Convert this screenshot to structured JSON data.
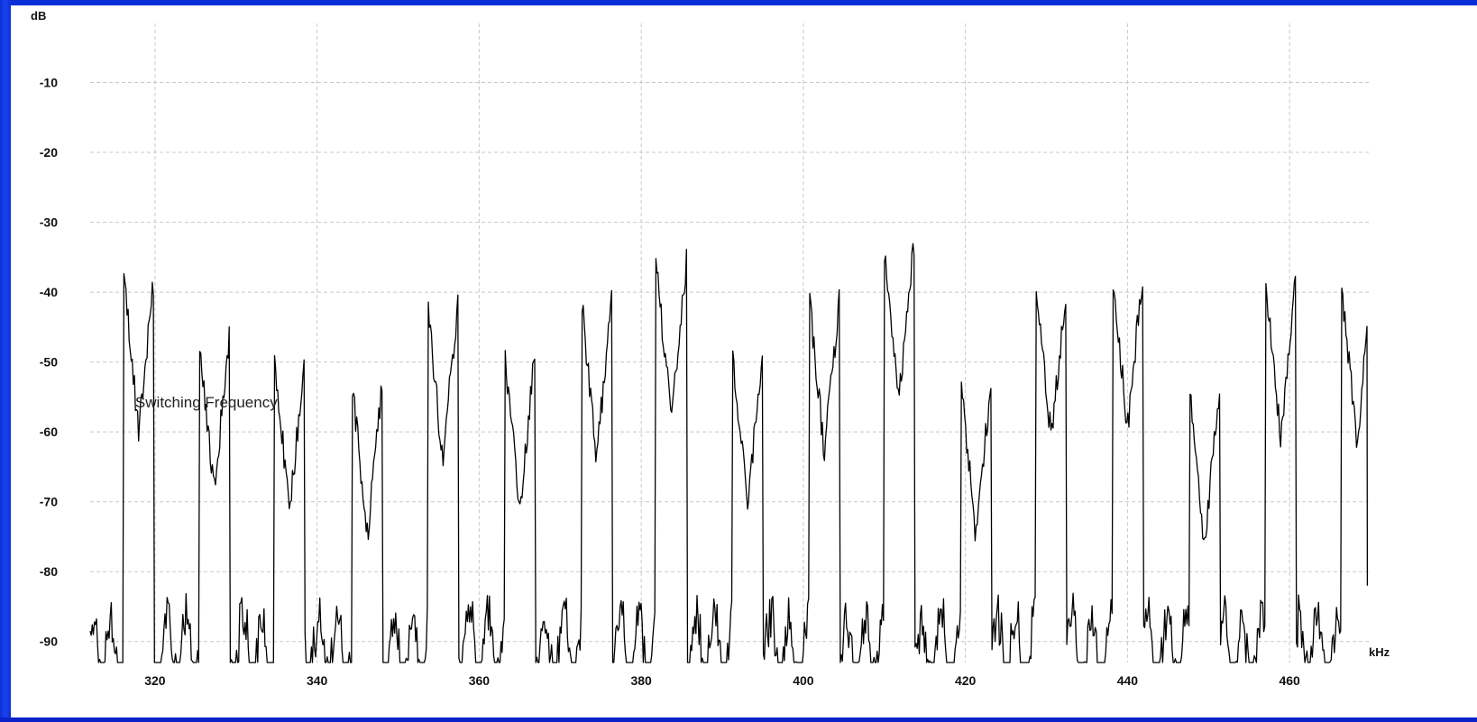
{
  "chart_data": {
    "type": "line",
    "xlabel": "kHz",
    "ylabel": "dB",
    "xlim": [
      312,
      470
    ],
    "ylim": [
      -93,
      0
    ],
    "x_ticks": [
      320,
      340,
      360,
      380,
      400,
      420,
      440,
      460
    ],
    "y_ticks": [
      -10,
      -20,
      -30,
      -40,
      -50,
      -60,
      -70,
      -80,
      -90
    ],
    "grid": true,
    "line_color": "#000000",
    "noise_floor": -93,
    "annotations": [
      {
        "text": "Switching Frequency",
        "x": 318,
        "y": -56.5
      }
    ],
    "peaks": [
      {
        "x": 318.0,
        "y": -60
      },
      {
        "x": 327.3,
        "y": -68.5
      },
      {
        "x": 336.6,
        "y": -71.5
      },
      {
        "x": 346.2,
        "y": -75
      },
      {
        "x": 355.5,
        "y": -64
      },
      {
        "x": 365.0,
        "y": -71
      },
      {
        "x": 374.5,
        "y": -63.5
      },
      {
        "x": 383.7,
        "y": -58
      },
      {
        "x": 393.1,
        "y": -70.5
      },
      {
        "x": 402.6,
        "y": -63
      },
      {
        "x": 411.8,
        "y": -55
      },
      {
        "x": 421.3,
        "y": -75
      },
      {
        "x": 430.6,
        "y": -61
      },
      {
        "x": 440.0,
        "y": -59.5
      },
      {
        "x": 449.5,
        "y": -76
      },
      {
        "x": 458.9,
        "y": -60.5
      },
      {
        "x": 468.3,
        "y": -61.5
      }
    ],
    "series": [
      {
        "x_end": 469.6,
        "y_end": -82
      }
    ]
  }
}
